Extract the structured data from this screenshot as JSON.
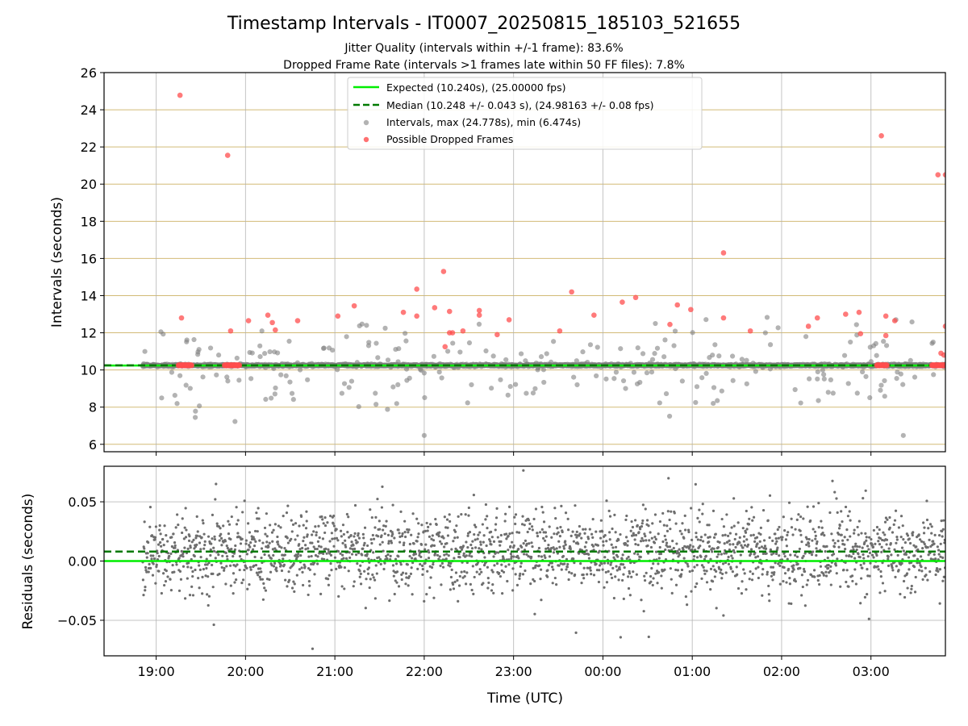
{
  "figure": {
    "title": "Timestamp Intervals - IT0007_20250815_185103_521655",
    "subtitle_line1": "Jitter Quality (intervals within +/-1 frame): 83.6%",
    "subtitle_line2": "Dropped Frame Rate (intervals >1 frames late within 50 FF files): 7.8%"
  },
  "colors": {
    "expected_line": "#00ee00",
    "median_line": "#007a00",
    "intervals_points": "#808080",
    "dropped_points": "#ff4d4d",
    "top_gridlines": "#c8aa55",
    "gridlines": "#b0b0b0",
    "residual_points": "#6e6e6e"
  },
  "chart_data": [
    {
      "type": "scatter",
      "panel": "intervals",
      "xlabel": "",
      "ylabel": "Intervals (seconds)",
      "ylim": [
        5.6,
        26
      ],
      "yticks": [
        "6",
        "8",
        "10",
        "12",
        "14",
        "16",
        "18",
        "20",
        "22",
        "24",
        "26"
      ],
      "xlim": [
        "18:25",
        "03:50"
      ],
      "xticks": [
        "19:00",
        "20:00",
        "21:00",
        "22:00",
        "23:00",
        "00:00",
        "01:00",
        "02:00",
        "03:00"
      ],
      "grid": "y lines at even values, x lines at hours",
      "legend_position": "top-center",
      "legend": [
        {
          "label": "Expected (10.240s), (25.00000 fps)",
          "style": "solid-line"
        },
        {
          "label": "Median (10.248 +/- 0.043 s), (24.98163 +/- 0.08 fps)",
          "style": "dashed-line"
        },
        {
          "label": "Intervals, max (24.778s), min (6.474s)",
          "style": "grey-dot"
        },
        {
          "label": "Possible Dropped Frames",
          "style": "red-dot"
        }
      ],
      "reference_lines": {
        "expected": 10.24,
        "median": 10.248
      },
      "series_note": "Dense band of interval points near 10.24 s spanning 18:51 to 03:50",
      "dropped_frames": [
        {
          "t": "19:16",
          "v": 24.78
        },
        {
          "t": "19:17",
          "v": 12.8
        },
        {
          "t": "19:48",
          "v": 21.55
        },
        {
          "t": "19:50",
          "v": 12.1
        },
        {
          "t": "20:02",
          "v": 12.65
        },
        {
          "t": "20:15",
          "v": 12.95
        },
        {
          "t": "20:18",
          "v": 12.55
        },
        {
          "t": "20:20",
          "v": 12.15
        },
        {
          "t": "20:35",
          "v": 12.65
        },
        {
          "t": "21:02",
          "v": 12.9
        },
        {
          "t": "21:13",
          "v": 13.45
        },
        {
          "t": "21:46",
          "v": 13.1
        },
        {
          "t": "21:55",
          "v": 12.9
        },
        {
          "t": "21:55",
          "v": 14.35
        },
        {
          "t": "22:07",
          "v": 13.35
        },
        {
          "t": "22:13",
          "v": 15.3
        },
        {
          "t": "22:14",
          "v": 11.25
        },
        {
          "t": "22:17",
          "v": 13.15
        },
        {
          "t": "22:17",
          "v": 12.0
        },
        {
          "t": "22:19",
          "v": 12.0
        },
        {
          "t": "22:26",
          "v": 12.1
        },
        {
          "t": "22:37",
          "v": 13.2
        },
        {
          "t": "22:37",
          "v": 12.95
        },
        {
          "t": "22:49",
          "v": 11.9
        },
        {
          "t": "22:57",
          "v": 12.7
        },
        {
          "t": "23:31",
          "v": 12.1
        },
        {
          "t": "23:39",
          "v": 14.2
        },
        {
          "t": "23:54",
          "v": 12.95
        },
        {
          "t": "00:13",
          "v": 13.65
        },
        {
          "t": "00:22",
          "v": 13.9
        },
        {
          "t": "00:45",
          "v": 12.45
        },
        {
          "t": "00:50",
          "v": 13.5
        },
        {
          "t": "00:59",
          "v": 13.25
        },
        {
          "t": "01:21",
          "v": 16.3
        },
        {
          "t": "01:21",
          "v": 12.8
        },
        {
          "t": "01:39",
          "v": 12.1
        },
        {
          "t": "02:18",
          "v": 12.35
        },
        {
          "t": "02:24",
          "v": 12.8
        },
        {
          "t": "02:43",
          "v": 13.0
        },
        {
          "t": "02:52",
          "v": 13.1
        },
        {
          "t": "02:53",
          "v": 11.95
        },
        {
          "t": "03:07",
          "v": 22.6
        },
        {
          "t": "03:10",
          "v": 12.9
        },
        {
          "t": "03:10",
          "v": 11.85
        },
        {
          "t": "03:16",
          "v": 12.65
        },
        {
          "t": "03:45",
          "v": 20.5
        },
        {
          "t": "03:47",
          "v": 10.9
        },
        {
          "t": "03:49",
          "v": 10.8
        },
        {
          "t": "03:50",
          "v": 20.5
        },
        {
          "t": "03:50",
          "v": 12.35
        }
      ],
      "dropped_frame_clusters": [
        {
          "start": "19:15",
          "end": "19:24",
          "v": 10.25
        },
        {
          "start": "19:46",
          "end": "19:56",
          "v": 10.25
        },
        {
          "start": "03:04",
          "end": "03:11",
          "v": 10.25
        },
        {
          "start": "03:41",
          "end": "03:50",
          "v": 10.25
        }
      ],
      "intervals_min": 6.474,
      "intervals_max": 24.778
    },
    {
      "type": "scatter",
      "panel": "residuals",
      "xlabel": "Time (UTC)",
      "ylabel": "Residuals (seconds)",
      "ylim": [
        -0.08,
        0.08
      ],
      "yticks": [
        "−0.05",
        "0.00",
        "0.05"
      ],
      "xlim": [
        "18:25",
        "03:50"
      ],
      "xticks": [
        "19:00",
        "20:00",
        "21:00",
        "22:00",
        "23:00",
        "00:00",
        "01:00",
        "02:00",
        "03:00"
      ],
      "grid": "on",
      "reference_lines": {
        "expected": 0.0,
        "median": 0.008
      },
      "series_note": "Residual points spread roughly between -0.07 and 0.08 s from 18:51 to 03:50"
    }
  ]
}
